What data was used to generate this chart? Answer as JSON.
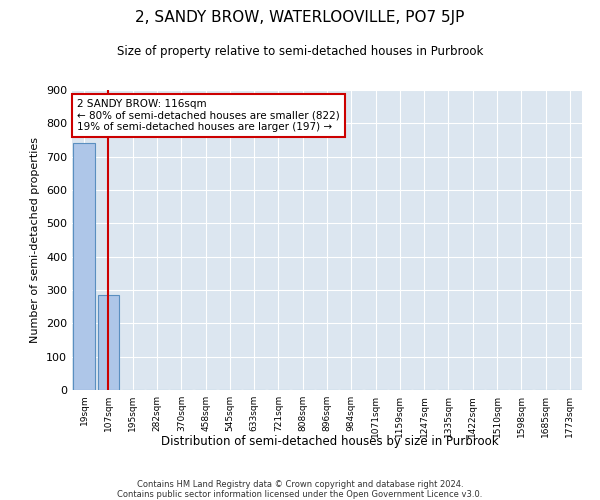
{
  "title": "2, SANDY BROW, WATERLOOVILLE, PO7 5JP",
  "subtitle": "Size of property relative to semi-detached houses in Purbrook",
  "xlabel": "Distribution of semi-detached houses by size in Purbrook",
  "ylabel": "Number of semi-detached properties",
  "categories": [
    "19sqm",
    "107sqm",
    "195sqm",
    "282sqm",
    "370sqm",
    "458sqm",
    "545sqm",
    "633sqm",
    "721sqm",
    "808sqm",
    "896sqm",
    "984sqm",
    "1071sqm",
    "1159sqm",
    "1247sqm",
    "1335sqm",
    "1422sqm",
    "1510sqm",
    "1598sqm",
    "1685sqm",
    "1773sqm"
  ],
  "values": [
    740,
    285,
    0,
    0,
    0,
    0,
    0,
    0,
    0,
    0,
    0,
    0,
    0,
    0,
    0,
    0,
    0,
    0,
    0,
    0,
    0
  ],
  "bar_color": "#aec6e8",
  "bar_edge_color": "#5a8fc0",
  "property_line_x": 1.0,
  "annotation_text_line1": "2 SANDY BROW: 116sqm",
  "annotation_text_line2": "← 80% of semi-detached houses are smaller (822)",
  "annotation_text_line3": "19% of semi-detached houses are larger (197) →",
  "annotation_box_color": "#ffffff",
  "annotation_box_edge": "#cc0000",
  "property_line_color": "#cc0000",
  "ylim": [
    0,
    900
  ],
  "yticks": [
    0,
    100,
    200,
    300,
    400,
    500,
    600,
    700,
    800,
    900
  ],
  "background_color": "#dce6f0",
  "grid_color": "#ffffff",
  "footer_line1": "Contains HM Land Registry data © Crown copyright and database right 2024.",
  "footer_line2": "Contains public sector information licensed under the Open Government Licence v3.0."
}
